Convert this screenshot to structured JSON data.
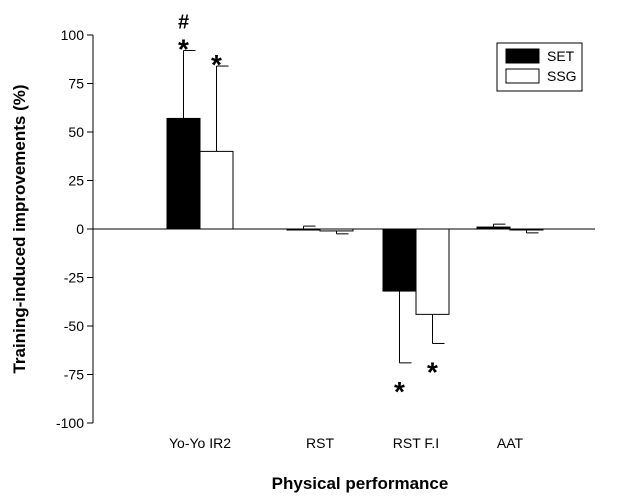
{
  "chart_data": {
    "type": "bar",
    "title": "",
    "xlabel": "Physical performance",
    "ylabel": "Training-induced improvements (%)",
    "ylim": [
      -100,
      100
    ],
    "yticks": [
      -100,
      -75,
      -50,
      -25,
      0,
      25,
      50,
      75,
      100
    ],
    "yticklabels": [
      "-100",
      "-75",
      "-50",
      "-25",
      "0",
      "25",
      "50",
      "75",
      "100"
    ],
    "categories": [
      "Yo-Yo IR2",
      "RST",
      "RST F.I",
      "AAT"
    ],
    "series": [
      {
        "name": "SET",
        "color": "#000000",
        "values": [
          57,
          0,
          -32,
          1
        ],
        "error": [
          35,
          1.5,
          37,
          1.5
        ],
        "error_direction": [
          "up",
          "up",
          "down",
          "up"
        ]
      },
      {
        "name": "SSG",
        "color": "#ffffff",
        "values": [
          40,
          -1,
          -44,
          -0.5
        ],
        "error": [
          44,
          1.5,
          15,
          1.5
        ],
        "error_direction": [
          "up",
          "down",
          "down",
          "down"
        ]
      }
    ],
    "annotations": [
      {
        "text": "#",
        "category": "Yo-Yo IR2",
        "series": "SET"
      },
      {
        "text": "*",
        "category": "Yo-Yo IR2",
        "series": "SET"
      },
      {
        "text": "*",
        "category": "Yo-Yo IR2",
        "series": "SSG"
      },
      {
        "text": "*",
        "category": "RST F.I",
        "series": "SET"
      },
      {
        "text": "*",
        "category": "RST F.I",
        "series": "SSG"
      }
    ],
    "legend": {
      "position": "top-right"
    },
    "grid": false
  }
}
